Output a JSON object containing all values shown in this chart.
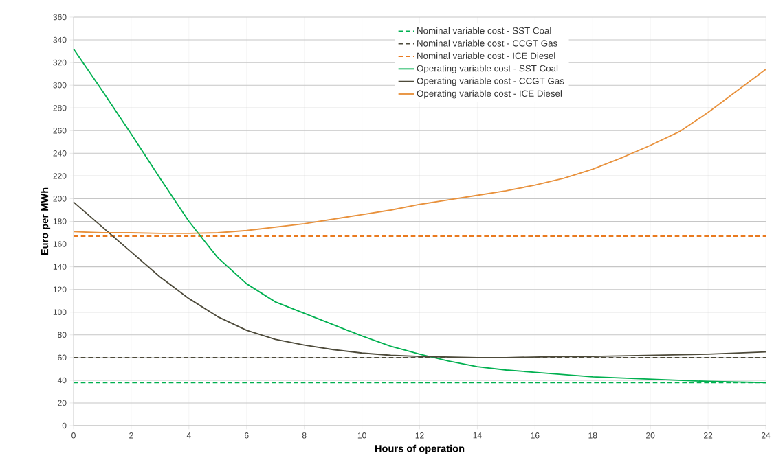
{
  "chart_data": {
    "type": "line",
    "xlabel": "Hours of operation",
    "ylabel": "Euro per MWh",
    "xlim": [
      0,
      24
    ],
    "ylim": [
      0,
      360
    ],
    "xticks": [
      0,
      2,
      4,
      6,
      8,
      10,
      12,
      14,
      16,
      18,
      20,
      22,
      24
    ],
    "yticks": [
      0,
      20,
      40,
      60,
      80,
      100,
      120,
      140,
      160,
      180,
      200,
      220,
      240,
      260,
      280,
      300,
      320,
      340,
      360
    ],
    "grid": true,
    "legend": "top",
    "series": [
      {
        "name": "Nominal variable cost - SST Coal",
        "color": "#00b050",
        "line_style": "dashed",
        "x": [
          0,
          24
        ],
        "values": [
          38,
          38
        ]
      },
      {
        "name": "Nominal variable cost - CCGT Gas",
        "color": "#4d4a3a",
        "line_style": "dashed",
        "x": [
          0,
          24
        ],
        "values": [
          60,
          60
        ]
      },
      {
        "name": "Nominal variable cost - ICE Diesel",
        "color": "#e97a1f",
        "line_style": "dashed",
        "x": [
          0,
          24
        ],
        "values": [
          167,
          167
        ]
      },
      {
        "name": "Operating variable cost - SST Coal",
        "color": "#00b050",
        "line_style": "solid",
        "x": [
          0,
          1,
          2,
          3,
          4,
          5,
          6,
          7,
          8,
          9,
          10,
          11,
          12,
          13,
          14,
          15,
          16,
          17,
          18,
          19,
          20,
          21,
          22,
          23,
          24
        ],
        "values": [
          332,
          295,
          257,
          218,
          180,
          148,
          125,
          109,
          99,
          89,
          79,
          70,
          63,
          57,
          52,
          49,
          47,
          45,
          43,
          42,
          41,
          40,
          39,
          38.5,
          38
        ]
      },
      {
        "name": "Operating variable cost - CCGT Gas",
        "color": "#4d4a3a",
        "line_style": "solid",
        "x": [
          0,
          1,
          2,
          3,
          4,
          5,
          6,
          7,
          8,
          9,
          10,
          11,
          12,
          13,
          14,
          15,
          16,
          17,
          18,
          19,
          20,
          21,
          22,
          23,
          24
        ],
        "values": [
          197,
          175,
          153,
          131,
          112,
          96,
          84,
          76,
          71,
          67,
          64,
          62,
          61,
          60.5,
          60,
          60,
          60.5,
          61,
          61,
          61.5,
          62,
          62.5,
          63,
          64,
          65
        ]
      },
      {
        "name": "Operating variable cost - ICE Diesel",
        "color": "#e8913c",
        "line_style": "solid",
        "x": [
          0,
          1,
          2,
          3,
          4,
          5,
          6,
          7,
          8,
          9,
          10,
          11,
          12,
          13,
          14,
          15,
          16,
          17,
          18,
          19,
          20,
          21,
          22,
          23,
          24
        ],
        "values": [
          171,
          170,
          170,
          169.5,
          169.5,
          170,
          172,
          175,
          178,
          182,
          186,
          190,
          195,
          199,
          203,
          207,
          212,
          218,
          226,
          236,
          247,
          259,
          276,
          295,
          314
        ]
      }
    ]
  }
}
